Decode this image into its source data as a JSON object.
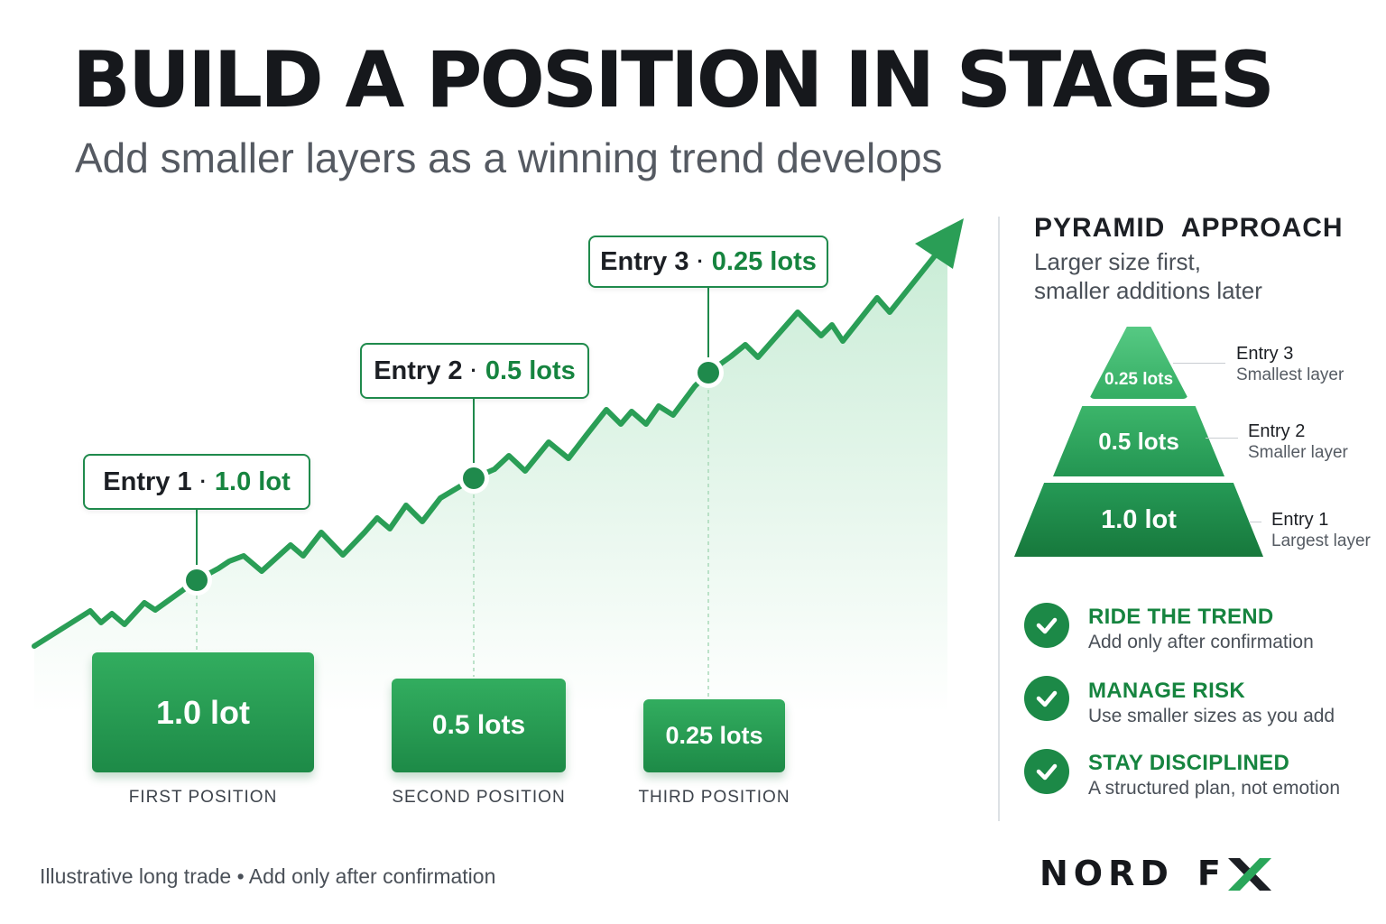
{
  "title": "BUILD A POSITION IN STAGES",
  "subtitle": "Add smaller layers as a winning trend develops",
  "colors": {
    "green": "#1f8a4c",
    "green_light": "#32ad5f",
    "text": "#1c1f24"
  },
  "entries": [
    {
      "label": "Entry 1",
      "sep": "·",
      "lots": "1.0 lot"
    },
    {
      "label": "Entry 2",
      "sep": "·",
      "lots": "0.5 lots"
    },
    {
      "label": "Entry 3",
      "sep": "·",
      "lots": "0.25 lots"
    }
  ],
  "positions": [
    {
      "value": "1.0 lot",
      "label": "FIRST POSITION"
    },
    {
      "value": "0.5 lots",
      "label": "SECOND POSITION"
    },
    {
      "value": "0.25 lots",
      "label": "THIRD POSITION"
    }
  ],
  "panel": {
    "title": "PYRAMID  APPROACH",
    "subtitle_line1": "Larger size first,",
    "subtitle_line2": "smaller additions later",
    "pyramid": [
      {
        "value": "0.25 lots",
        "entry": "Entry 3",
        "desc": "Smallest layer"
      },
      {
        "value": "0.5 lots",
        "entry": "Entry 2",
        "desc": "Smaller layer"
      },
      {
        "value": "1.0 lot",
        "entry": "Entry 1",
        "desc": "Largest layer"
      }
    ]
  },
  "checks": [
    {
      "title": "RIDE THE TREND",
      "text": "Add only after confirmation",
      "icon": "check-icon"
    },
    {
      "title": "MANAGE RISK",
      "text": "Use smaller sizes as you add",
      "icon": "check-icon"
    },
    {
      "title": "STAY DISCIPLINED",
      "text": "A structured plan, not emotion",
      "icon": "check-icon"
    }
  ],
  "footer": "Illustrative long trade • Add only after confirmation",
  "logo": {
    "word1": "NORD",
    "word2": "F"
  }
}
